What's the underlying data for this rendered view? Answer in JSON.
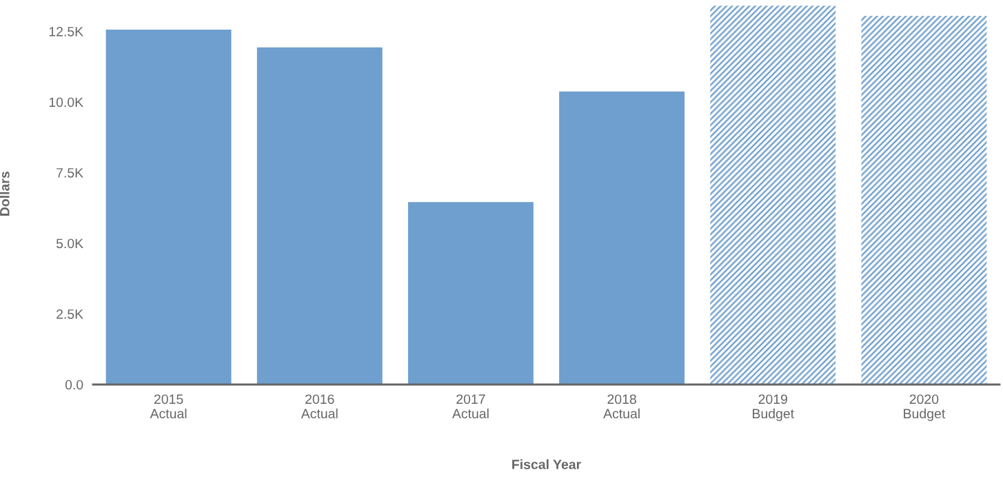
{
  "chart_data": {
    "type": "bar",
    "xlabel": "Fiscal Year",
    "ylabel": "Dollars",
    "categories": [
      "2015\nActual",
      "2016\nActual",
      "2017\nActual",
      "2018\nActual",
      "2019\nBudget",
      "2020\nBudget"
    ],
    "series": [
      {
        "color": "#6f9fce",
        "values": [
          12560,
          11930,
          6460,
          10370,
          null,
          null
        ]
      },
      {
        "color": "#6f9fce",
        "values": [
          null,
          null,
          null,
          null,
          13410,
          13050
        ]
      }
    ],
    "ylim": [
      0,
      13500
    ],
    "yticks": [
      {
        "value": 0,
        "label": "0.0"
      },
      {
        "value": 2500,
        "label": "2.5K"
      },
      {
        "value": 5000,
        "label": "5.0K"
      },
      {
        "value": 7500,
        "label": "7.5K"
      },
      {
        "value": 10000,
        "label": "10.0K"
      },
      {
        "value": 12500,
        "label": "12.5K"
      }
    ],
    "grid": false,
    "legend": false
  }
}
